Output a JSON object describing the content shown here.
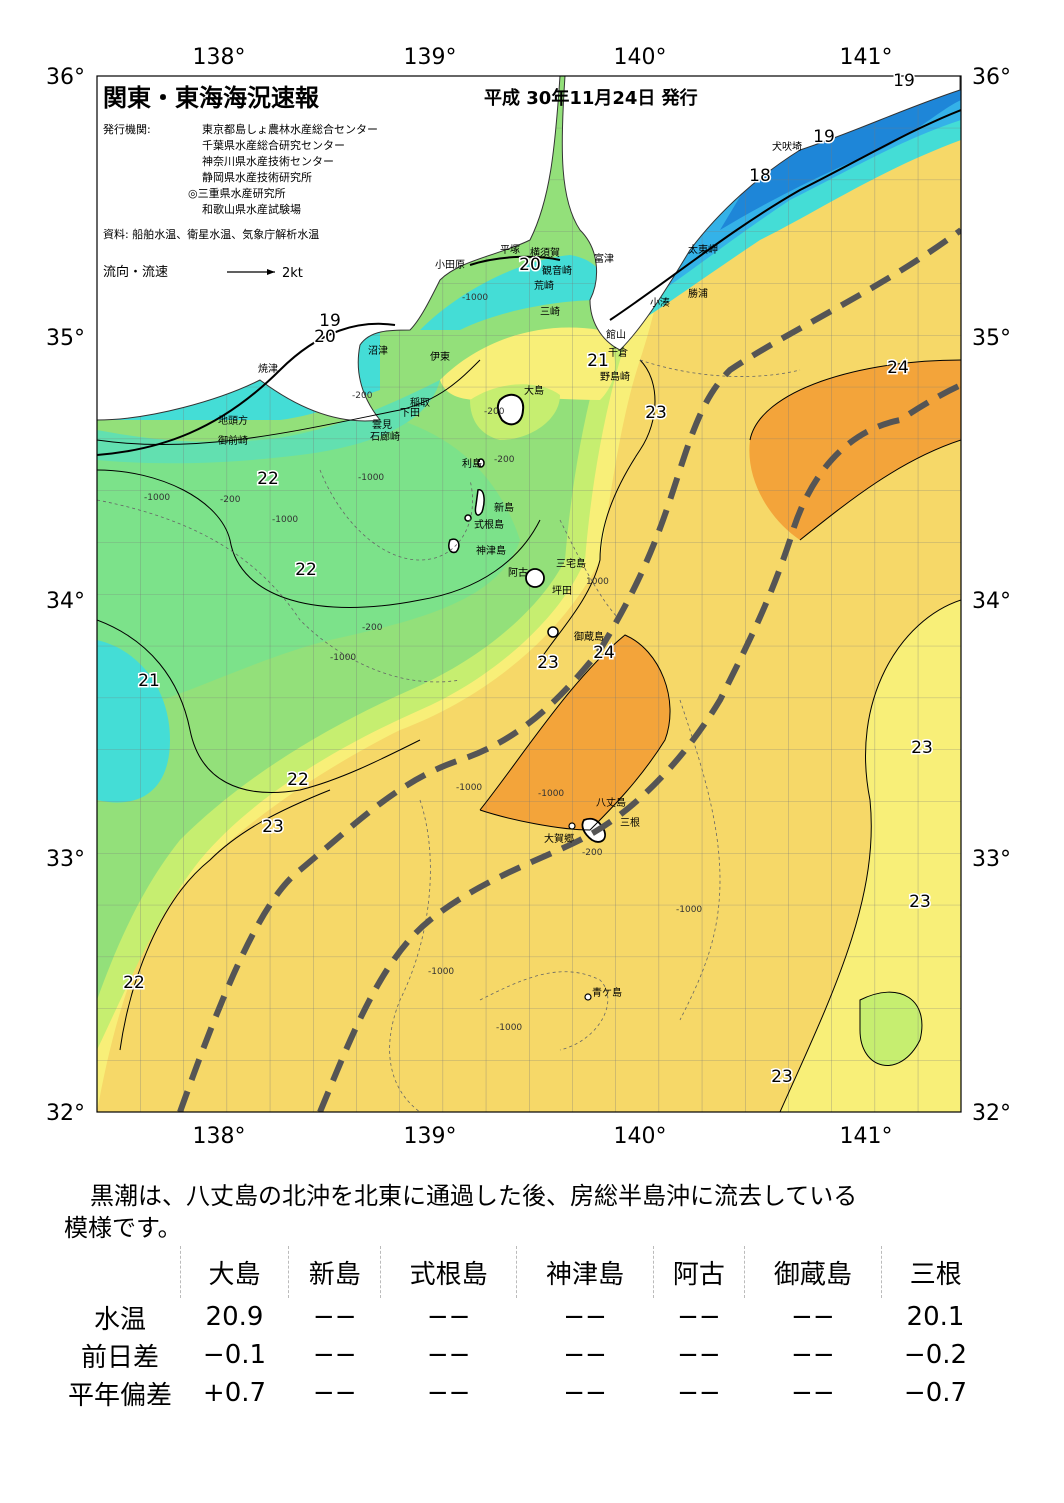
{
  "header": {
    "title": "関東・東海海況速報",
    "issue_date": "平成 30年11月24日 発行",
    "publisher_label": "発行機関:",
    "publishers": [
      "東京都島しょ農林水産総合センター",
      "千葉県水産総合研究センター",
      "神奈川県水産技術センター",
      "静岡県水産技術研究所",
      "◎三重県水産研究所",
      "和歌山県水産試験場"
    ],
    "sources": "資料: 船舶水温、衛星水温、気象庁解析水温",
    "current_legend_label": "流向・流速",
    "current_legend_value": "2kt"
  },
  "map": {
    "lon_labels": [
      "138°",
      "139°",
      "140°",
      "141°"
    ],
    "lat_labels": [
      "36°",
      "35°",
      "34°",
      "33°",
      "32°"
    ],
    "isotherm_labels": [
      "19",
      "19",
      "18",
      "20",
      "19",
      "20",
      "21",
      "22",
      "22",
      "21",
      "22",
      "23",
      "23",
      "24",
      "24",
      "23",
      "23",
      "23",
      "22",
      "23"
    ],
    "depth_labels": [
      "-1000",
      "-200",
      "-1000",
      "-200",
      "-1000",
      "-200",
      "-1000",
      "-200",
      "-1000",
      "-200",
      "-1000",
      "-1000",
      "-1000",
      "-200",
      "1000",
      "-1000",
      "-1000"
    ],
    "place_names": {
      "inubosaki": "犬吠埼",
      "taitozaki": "太東岬",
      "katsuura": "勝浦",
      "kominato": "小湊",
      "tomitsu": "富津",
      "kannonzaki": "観音崎",
      "yokosuka": "横須賀",
      "hiratsuka": "平塚",
      "odawara": "小田原",
      "arasaki": "荒崎",
      "misaki": "三崎",
      "tateyama": "館山",
      "chikura": "千倉",
      "nojimazaki": "野島崎",
      "numazu": "沼津",
      "ito": "伊東",
      "yaizu": "焼津",
      "inatori": "稲取",
      "shimoda": "下田",
      "kumomi": "雲見",
      "irozaki": "石廊崎",
      "jitogata": "地頭方",
      "omaezaki": "御前崎",
      "oshima": "大島",
      "toshima": "利島",
      "niijima": "新島",
      "shikinejima": "式根島",
      "kozushima": "神津島",
      "miyakejima": "三宅島",
      "ako": "阿古",
      "tsubota": "坪田",
      "mikurajima": "御蔵島",
      "hachijojima": "八丈島",
      "mitsune": "三根",
      "ohashi": "大賀郷",
      "aogashima": "青ケ島"
    },
    "colors": {
      "cold_18": "#1e86d8",
      "cold_19": "#34b2e8",
      "t_20": "#44ddd6",
      "t_21": "#62e0b0",
      "t_21_5": "#7ce28a",
      "t_22": "#93e07a",
      "t_22_5": "#c6ee70",
      "t_23": "#f8ef78",
      "t_23_5": "#f6d868",
      "t_24": "#f0c25a",
      "t_24_5": "#f3a43a",
      "kuroshio_axis": "#555555"
    }
  },
  "summary": {
    "line1": "黒潮は、八丈島の北沖を北東に通過した後、房総半島沖に流去している",
    "line2": "模様です。"
  },
  "stations": {
    "headers": [
      "大島",
      "新島",
      "式根島",
      "神津島",
      "阿古",
      "御蔵島",
      "三根"
    ],
    "rows": [
      {
        "label": "水温",
        "values": [
          "20.9",
          "−−",
          "−−",
          "−−",
          "−−",
          "−−",
          "20.1"
        ]
      },
      {
        "label": "前日差",
        "values": [
          "−0.1",
          "−−",
          "−−",
          "−−",
          "−−",
          "−−",
          "−0.2"
        ]
      },
      {
        "label": "平年偏差",
        "values": [
          "+0.7",
          "−−",
          "−−",
          "−−",
          "−−",
          "−−",
          "−0.7"
        ]
      }
    ]
  }
}
